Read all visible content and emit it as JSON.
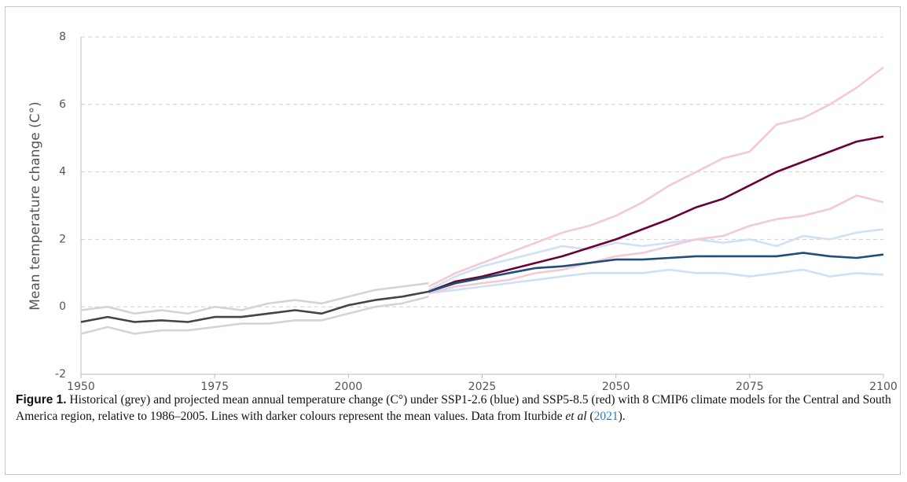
{
  "chart_data": {
    "type": "line",
    "ylabel": "Mean temperature change (C°)",
    "x": [
      1950,
      1955,
      1960,
      1965,
      1970,
      1975,
      1980,
      1985,
      1990,
      1995,
      2000,
      2005,
      2010,
      2015,
      2020,
      2025,
      2030,
      2035,
      2040,
      2045,
      2050,
      2055,
      2060,
      2065,
      2070,
      2075,
      2080,
      2085,
      2090,
      2095,
      2100
    ],
    "xlim": [
      1950,
      2100
    ],
    "xticks": [
      1950,
      1975,
      2000,
      2025,
      2050,
      2075,
      2100
    ],
    "ylim": [
      -2,
      8
    ],
    "yticks": [
      -2,
      0,
      2,
      4,
      6,
      8
    ],
    "grid": true,
    "series": [
      {
        "color": "#d4d4d4",
        "values": [
          -0.1,
          0.0,
          -0.2,
          -0.1,
          -0.2,
          0.0,
          -0.1,
          0.1,
          0.2,
          0.1,
          0.3,
          0.5,
          0.6,
          0.7,
          null,
          null,
          null,
          null,
          null,
          null,
          null,
          null,
          null,
          null,
          null,
          null,
          null,
          null,
          null,
          null,
          null
        ]
      },
      {
        "color": "#d4d4d4",
        "values": [
          -0.8,
          -0.6,
          -0.8,
          -0.7,
          -0.7,
          -0.6,
          -0.5,
          -0.5,
          -0.4,
          -0.4,
          -0.2,
          0.0,
          0.1,
          0.3,
          null,
          null,
          null,
          null,
          null,
          null,
          null,
          null,
          null,
          null,
          null,
          null,
          null,
          null,
          null,
          null,
          null
        ]
      },
      {
        "color": "#cfe1f2",
        "values": [
          null,
          null,
          null,
          null,
          null,
          null,
          null,
          null,
          null,
          null,
          null,
          null,
          null,
          0.5,
          0.9,
          1.2,
          1.4,
          1.6,
          1.8,
          1.7,
          1.9,
          1.8,
          1.9,
          2.0,
          1.9,
          2.0,
          1.8,
          2.1,
          2.0,
          2.2,
          2.3
        ]
      },
      {
        "color": "#cfe1f2",
        "values": [
          null,
          null,
          null,
          null,
          null,
          null,
          null,
          null,
          null,
          null,
          null,
          null,
          null,
          0.4,
          0.5,
          0.6,
          0.7,
          0.8,
          0.9,
          1.0,
          1.0,
          1.0,
          1.1,
          1.0,
          1.0,
          0.9,
          1.0,
          1.1,
          0.9,
          1.0,
          0.95
        ]
      },
      {
        "color": "#f3c9d4",
        "values": [
          null,
          null,
          null,
          null,
          null,
          null,
          null,
          null,
          null,
          null,
          null,
          null,
          null,
          0.6,
          1.0,
          1.3,
          1.6,
          1.9,
          2.2,
          2.4,
          2.7,
          3.1,
          3.6,
          4.0,
          4.4,
          4.6,
          5.4,
          5.6,
          6.0,
          6.5,
          7.1
        ]
      },
      {
        "color": "#f3c9d4",
        "values": [
          null,
          null,
          null,
          null,
          null,
          null,
          null,
          null,
          null,
          null,
          null,
          null,
          null,
          0.4,
          0.6,
          0.7,
          0.8,
          1.0,
          1.1,
          1.3,
          1.5,
          1.6,
          1.8,
          2.0,
          2.1,
          2.4,
          2.6,
          2.7,
          2.9,
          3.3,
          3.1
        ]
      },
      {
        "color": "#6b0036",
        "values": [
          null,
          null,
          null,
          null,
          null,
          null,
          null,
          null,
          null,
          null,
          null,
          null,
          null,
          0.45,
          0.75,
          0.9,
          1.1,
          1.3,
          1.5,
          1.75,
          2.0,
          2.3,
          2.6,
          2.95,
          3.2,
          3.6,
          4.0,
          4.3,
          4.6,
          4.9,
          5.05
        ]
      },
      {
        "color": "#1f4e79",
        "values": [
          null,
          null,
          null,
          null,
          null,
          null,
          null,
          null,
          null,
          null,
          null,
          null,
          null,
          0.45,
          0.7,
          0.85,
          1.0,
          1.15,
          1.2,
          1.3,
          1.4,
          1.4,
          1.45,
          1.5,
          1.5,
          1.5,
          1.5,
          1.6,
          1.5,
          1.45,
          1.55
        ]
      },
      {
        "color": "#444444",
        "values": [
          -0.45,
          -0.3,
          -0.45,
          -0.4,
          -0.45,
          -0.3,
          -0.3,
          -0.2,
          -0.1,
          -0.2,
          0.05,
          0.2,
          0.3,
          0.45,
          null,
          null,
          null,
          null,
          null,
          null,
          null,
          null,
          null,
          null,
          null,
          null,
          null,
          null,
          null,
          null,
          null
        ]
      }
    ]
  },
  "caption": {
    "label": "Figure 1.",
    "text": " Historical (grey) and projected mean annual temperature change (C°) under SSP1-2.6 (blue) and SSP5-8.5 (red) with 8 CMIP6 climate models for the Central and South America region, relative to 1986–2005. Lines with darker colours represent the mean values. Data from Iturbide ",
    "italic": "et al",
    "open": " (",
    "cite": "2021",
    "close": ")."
  }
}
